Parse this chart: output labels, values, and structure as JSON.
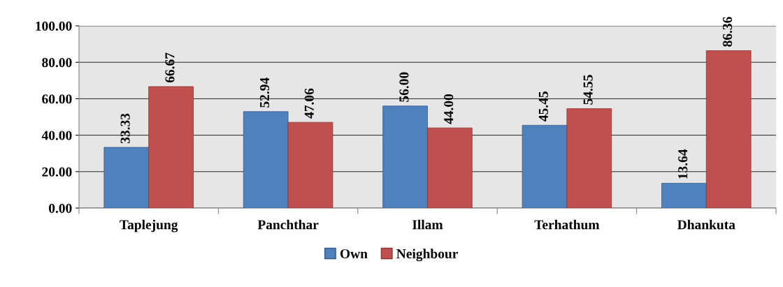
{
  "chart_data": {
    "type": "bar",
    "categories": [
      "Taplejung",
      "Panchthar",
      "Illam",
      "Terhathum",
      "Dhankuta"
    ],
    "series": [
      {
        "name": "Own",
        "color": "#4f81bd",
        "values": [
          33.33,
          52.94,
          56.0,
          45.45,
          13.64
        ]
      },
      {
        "name": "Neighbour",
        "color": "#c0504d",
        "values": [
          66.67,
          47.06,
          44.0,
          54.55,
          86.36
        ]
      }
    ],
    "ylim": [
      0,
      100
    ],
    "yticks": [
      {
        "value": 0,
        "label": "0.00"
      },
      {
        "value": 20,
        "label": "20.00"
      },
      {
        "value": 40,
        "label": "40.00"
      },
      {
        "value": 60,
        "label": "60.00"
      },
      {
        "value": 80,
        "label": "80.00"
      },
      {
        "value": 100,
        "label": "100.00"
      }
    ],
    "grid": "y",
    "legend": "bottom",
    "value_labels": [
      [
        "33.33",
        "52.94",
        "56.00",
        "45.45",
        "13.64"
      ],
      [
        "66.67",
        "47.06",
        "44.00",
        "54.55",
        "86.36"
      ]
    ]
  }
}
